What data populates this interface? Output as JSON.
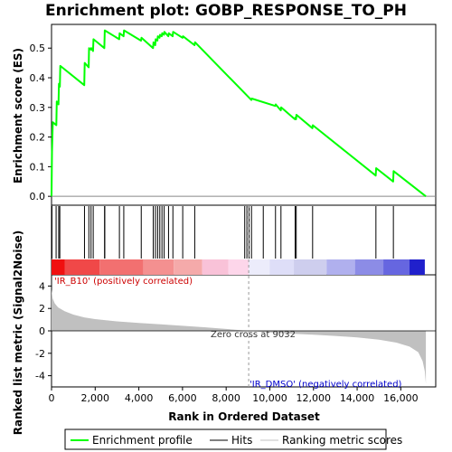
{
  "chart_data": {
    "type": "line",
    "title": "Enrichment plot: GOBP_RESPONSE_TO_PH",
    "xlabel": "Rank in Ordered Dataset",
    "ylabel_top": "Enrichment score (ES)",
    "ylabel_bottom": "Ranked list metric (Signal2Noise)",
    "xlim": [
      0,
      17600
    ],
    "ylim_top": [
      -0.03,
      0.58
    ],
    "ylim_bottom": [
      -5,
      5
    ],
    "x_ticks": [
      0,
      2000,
      4000,
      6000,
      8000,
      10000,
      12000,
      14000,
      16000
    ],
    "x_tick_labels": [
      "0",
      "2,000",
      "4,000",
      "6,000",
      "8,000",
      "10,000",
      "12,000",
      "14,000",
      "16,000"
    ],
    "y_ticks_top": [
      0.0,
      0.1,
      0.2,
      0.3,
      0.4,
      0.5
    ],
    "y_tick_labels_top": [
      "0.0",
      "0.1",
      "0.2",
      "0.3",
      "0.4",
      "0.5"
    ],
    "y_ticks_bottom": [
      -4,
      -2,
      0,
      2,
      4
    ],
    "y_tick_labels_bottom": [
      "-4",
      "-2",
      "0",
      "2",
      "4"
    ],
    "series": [
      {
        "name": "Enrichment profile",
        "color": "#00ff00",
        "points": [
          [
            0,
            0.0
          ],
          [
            20,
            0.15
          ],
          [
            60,
            0.25
          ],
          [
            220,
            0.24
          ],
          [
            240,
            0.32
          ],
          [
            320,
            0.31
          ],
          [
            340,
            0.38
          ],
          [
            380,
            0.37
          ],
          [
            400,
            0.44
          ],
          [
            1500,
            0.375
          ],
          [
            1520,
            0.45
          ],
          [
            1700,
            0.435
          ],
          [
            1720,
            0.5
          ],
          [
            1800,
            0.495
          ],
          [
            1820,
            0.5
          ],
          [
            1900,
            0.49
          ],
          [
            1920,
            0.53
          ],
          [
            2420,
            0.5
          ],
          [
            2440,
            0.56
          ],
          [
            3100,
            0.53
          ],
          [
            3120,
            0.55
          ],
          [
            3300,
            0.54
          ],
          [
            3320,
            0.56
          ],
          [
            4100,
            0.525
          ],
          [
            4120,
            0.535
          ],
          [
            4650,
            0.5
          ],
          [
            4670,
            0.52
          ],
          [
            4750,
            0.51
          ],
          [
            4770,
            0.53
          ],
          [
            4850,
            0.525
          ],
          [
            4870,
            0.54
          ],
          [
            4950,
            0.535
          ],
          [
            4970,
            0.545
          ],
          [
            5050,
            0.54
          ],
          [
            5070,
            0.55
          ],
          [
            5150,
            0.545
          ],
          [
            5170,
            0.555
          ],
          [
            5350,
            0.54
          ],
          [
            5370,
            0.55
          ],
          [
            5550,
            0.54
          ],
          [
            5570,
            0.555
          ],
          [
            6000,
            0.535
          ],
          [
            6020,
            0.54
          ],
          [
            6550,
            0.51
          ],
          [
            6570,
            0.52
          ],
          [
            9150,
            0.325
          ],
          [
            9170,
            0.33
          ],
          [
            10250,
            0.305
          ],
          [
            10270,
            0.31
          ],
          [
            10500,
            0.29
          ],
          [
            10520,
            0.3
          ],
          [
            11150,
            0.26
          ],
          [
            11170,
            0.265
          ],
          [
            11200,
            0.26
          ],
          [
            11220,
            0.275
          ],
          [
            11950,
            0.23
          ],
          [
            11970,
            0.24
          ],
          [
            14850,
            0.07
          ],
          [
            14870,
            0.095
          ],
          [
            15650,
            0.05
          ],
          [
            15670,
            0.085
          ],
          [
            17150,
            0.0
          ]
        ]
      }
    ],
    "hits": [
      20,
      210,
      330,
      380,
      1510,
      1710,
      1810,
      1910,
      2430,
      2440,
      3110,
      3310,
      4110,
      4660,
      4760,
      4860,
      4960,
      5060,
      5160,
      5360,
      5560,
      6010,
      6560,
      8850,
      8950,
      9050,
      9160,
      9700,
      10260,
      10510,
      11160,
      11210,
      11960,
      14860,
      15660
    ],
    "heatmap_segments": [
      {
        "x0": 0,
        "x1": 600,
        "color": "#f01010"
      },
      {
        "x0": 600,
        "x1": 2200,
        "color": "#f04848"
      },
      {
        "x0": 2200,
        "x1": 4200,
        "color": "#f27070"
      },
      {
        "x0": 4200,
        "x1": 5600,
        "color": "#f49090"
      },
      {
        "x0": 5600,
        "x1": 6900,
        "color": "#f5aaaa"
      },
      {
        "x0": 6900,
        "x1": 8100,
        "color": "#f9c2d8"
      },
      {
        "x0": 8100,
        "x1": 9032,
        "color": "#fdd6ea"
      },
      {
        "x0": 9032,
        "x1": 10000,
        "color": "#ececfb"
      },
      {
        "x0": 10000,
        "x1": 11100,
        "color": "#dedef8"
      },
      {
        "x0": 11100,
        "x1": 12600,
        "color": "#ceceee"
      },
      {
        "x0": 12600,
        "x1": 13900,
        "color": "#b0b0ee"
      },
      {
        "x0": 13900,
        "x1": 15200,
        "color": "#8c8ce6"
      },
      {
        "x0": 15200,
        "x1": 16400,
        "color": "#6666e0"
      },
      {
        "x0": 16400,
        "x1": 17100,
        "color": "#2020cc"
      }
    ],
    "metric_profile": [
      [
        0,
        3.7
      ],
      [
        50,
        2.9
      ],
      [
        150,
        2.45
      ],
      [
        300,
        2.1
      ],
      [
        600,
        1.75
      ],
      [
        1000,
        1.45
      ],
      [
        1500,
        1.2
      ],
      [
        2000,
        1.05
      ],
      [
        3000,
        0.85
      ],
      [
        4000,
        0.7
      ],
      [
        5000,
        0.58
      ],
      [
        6000,
        0.45
      ],
      [
        7000,
        0.32
      ],
      [
        8000,
        0.17
      ],
      [
        9032,
        0.0
      ],
      [
        10000,
        -0.14
      ],
      [
        11000,
        -0.25
      ],
      [
        12000,
        -0.35
      ],
      [
        13000,
        -0.45
      ],
      [
        14000,
        -0.58
      ],
      [
        15000,
        -0.78
      ],
      [
        15800,
        -1.05
      ],
      [
        16400,
        -1.4
      ],
      [
        16800,
        -1.9
      ],
      [
        17000,
        -2.7
      ],
      [
        17100,
        -3.6
      ],
      [
        17150,
        -4.7
      ]
    ],
    "annotations": {
      "pos_label": "'IR_B10' (positively correlated)",
      "neg_label": "'IR_DMSO' (negatively correlated)",
      "zero_cross": "Zero cross at 9032",
      "zero_cross_rank": 9032
    },
    "legend": [
      {
        "name": "Enrichment profile",
        "color": "#00ff00"
      },
      {
        "name": "Hits",
        "color": "#000000"
      },
      {
        "name": "Ranking metric scores",
        "color": "#c0c0c0"
      }
    ],
    "legend_position": "bottom"
  },
  "colors": {
    "es_line": "#00ff00",
    "metric_fill": "#c0c0c0",
    "pos_label": "#cc0000",
    "neg_label": "#0000cc",
    "zero_line": "#000000",
    "frame": "#000000"
  }
}
